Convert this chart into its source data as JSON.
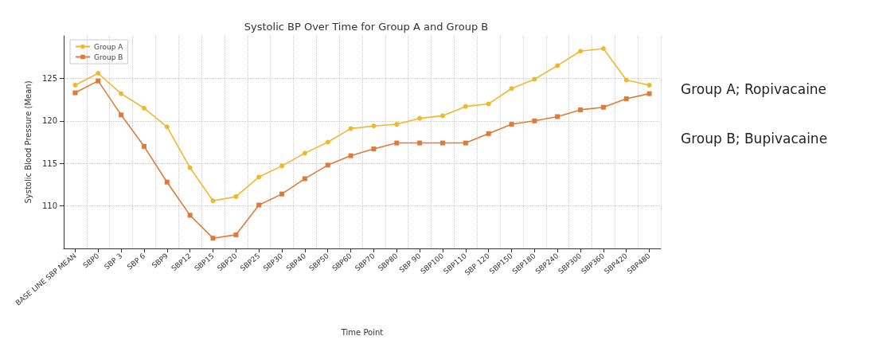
{
  "chart_data": {
    "type": "line",
    "title": "Systolic BP Over Time for Group A and Group B",
    "xlabel": "Time Point",
    "ylabel": "Systolic Blood Pressure (Mean)",
    "categories": [
      "BASE LINE SBP MEAN",
      "SBP0",
      "SBP 3",
      "SBP 6",
      "SBP9",
      "SBP12",
      "SBP15",
      "SBP20",
      "SBP25",
      "SBP30",
      "SBP40",
      "SBP50",
      "SBP60",
      "SBP70",
      "SBP80",
      "SBP 90",
      "SBP100",
      "SBP110",
      "SBP 120",
      "SBP150",
      "SBP180",
      "SBP240",
      "SBP300",
      "SBP360",
      "SBP420",
      "SBP480"
    ],
    "series": [
      {
        "name": "Group A",
        "color": "#f0b830",
        "marker": "circle",
        "values": [
          124.2,
          125.6,
          123.2,
          121.5,
          119.3,
          114.5,
          110.6,
          111.1,
          113.4,
          114.7,
          116.2,
          117.5,
          119.1,
          119.4,
          119.6,
          120.3,
          120.6,
          121.7,
          122.0,
          123.8,
          124.9,
          126.5,
          128.2,
          128.5,
          124.8,
          124.2
        ]
      },
      {
        "name": "Group B",
        "color": "#e07a38",
        "marker": "square",
        "values": [
          123.3,
          124.7,
          120.7,
          117.0,
          112.8,
          108.9,
          106.2,
          106.6,
          110.1,
          111.4,
          113.2,
          114.8,
          115.9,
          116.7,
          117.4,
          117.4,
          117.4,
          117.4,
          118.5,
          119.6,
          120.0,
          120.5,
          121.3,
          121.6,
          122.6,
          123.2
        ]
      }
    ],
    "ylim": [
      105,
      130
    ],
    "yticks": [
      110,
      115,
      120,
      125
    ],
    "grid": true,
    "legend": "top left",
    "line_style": "solid",
    "annotations": [
      "Group A; Ropivacaine",
      "Group B; Bupivacaine"
    ]
  }
}
